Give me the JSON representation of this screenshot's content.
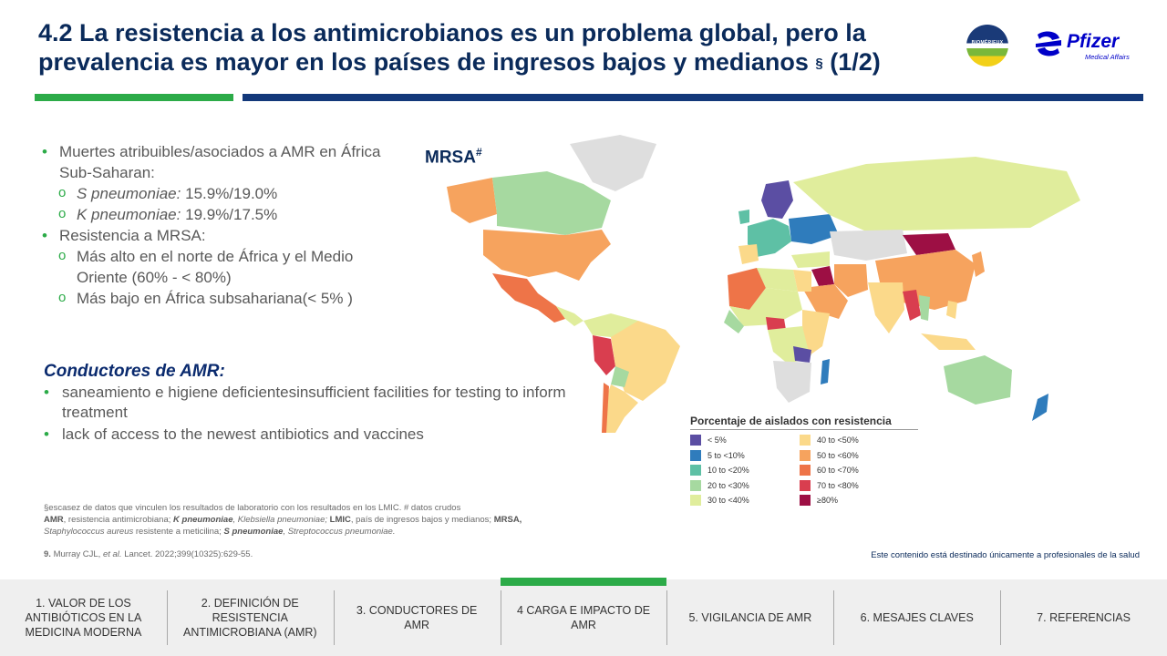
{
  "title": {
    "main": "4.2 La resistencia a los antimicrobianos es un problema global, pero la prevalencia es mayor en los países de ingresos bajos y medianos",
    "sup": "§",
    "suffix": "(1/2)"
  },
  "logos": {
    "biomerieux": "BIOMÉRIEUX",
    "pfizer": "Pfizer",
    "pfizer_sub": "Medical Affairs"
  },
  "bullets": {
    "b1": "Muertes atribuibles/asociados a AMR en África Sub-Saharan:",
    "b1_s1_italic": "S pneumoniae:",
    "b1_s1_value": "15.9%/19.0%",
    "b1_s2_italic": "K pneumoniae:",
    "b1_s2_value": "19.9%/17.5%",
    "b2": "Resistencia a MRSA:",
    "b2_s1": "Más alto en el norte de África y el Medio Oriente (60% - < 80%)",
    "b2_s2": "Más bajo en África subsahariana(< 5% )"
  },
  "drivers": {
    "title": "Conductores de AMR:",
    "items": [
      "saneamiento e higiene deficientesinsufficient facilities for testing to inform treatment",
      "lack of access to the newest antibiotics and vaccines"
    ]
  },
  "map": {
    "label": "MRSA",
    "label_sup": "#",
    "legend_title": "Porcentaje de aislados con resistencia",
    "legend": [
      {
        "label": "< 5%",
        "color": "#5b4ea3"
      },
      {
        "label": "40 to <50%",
        "color": "#fbd98a"
      },
      {
        "label": "5 to <10%",
        "color": "#2f7cbc"
      },
      {
        "label": "50 to <60%",
        "color": "#f6a35e"
      },
      {
        "label": "10 to <20%",
        "color": "#5ec0a5"
      },
      {
        "label": "60 to <70%",
        "color": "#ee7448"
      },
      {
        "label": "20 to <30%",
        "color": "#a6d9a0"
      },
      {
        "label": "70 to <80%",
        "color": "#d93e4f"
      },
      {
        "label": "30 to <40%",
        "color": "#e0ed9c"
      },
      {
        "label": "≥80%",
        "color": "#9d0f44"
      }
    ],
    "no_data_color": "#dedede"
  },
  "footnotes": {
    "line1": "§escasez de datos que vinculen los resultados de laboratorio con los resultados en los LMIC. # datos crudos",
    "amr_abbr": "AMR",
    "amr_def": ", resistencia antimicrobiana;",
    "kp_abbr": "K pneumoniae",
    "kp_def": ", Klebsiella pneumoniae;",
    "lmic_abbr": "LMIC",
    "lmic_def": ", país de ingresos bajos y medianos;",
    "mrsa_abbr": "MRSA,",
    "mrsa_def_it": "Staphylococcus aureus",
    "mrsa_def": "resistente a meticilina;",
    "sp_abbr": "S pneumoniae",
    "sp_def": ", Streptococcus pneumoniae."
  },
  "reference": {
    "num": "9.",
    "text1": "Murray CJL,",
    "etal": "et al.",
    "text2": "Lancet. 2022;399(10325):629-55."
  },
  "hcp_notice": "Este contenido está destinado únicamente a profesionales de la salud",
  "nav": [
    {
      "label": "1. VALOR DE LOS ANTIBIÓTICOS  EN LA MEDICINA MODERNA",
      "active": false
    },
    {
      "label": "2. DEFINICIÓN  DE RESISTENCIA ANTIMICROBIANA  (AMR)",
      "active": false
    },
    {
      "label": "3. CONDUCTORES  DE AMR",
      "active": false
    },
    {
      "label": "4 CARGA  E IMPACTO DE AMR",
      "active": true
    },
    {
      "label": "5. VIGILANCIA  DE AMR",
      "active": false
    },
    {
      "label": "6. MESAJES CLAVES",
      "active": false
    },
    {
      "label": "7. REFERENCIAS",
      "active": false
    }
  ],
  "colors": {
    "accent_green": "#2cab48",
    "navy": "#13387a",
    "title": "#0a2a5a"
  }
}
